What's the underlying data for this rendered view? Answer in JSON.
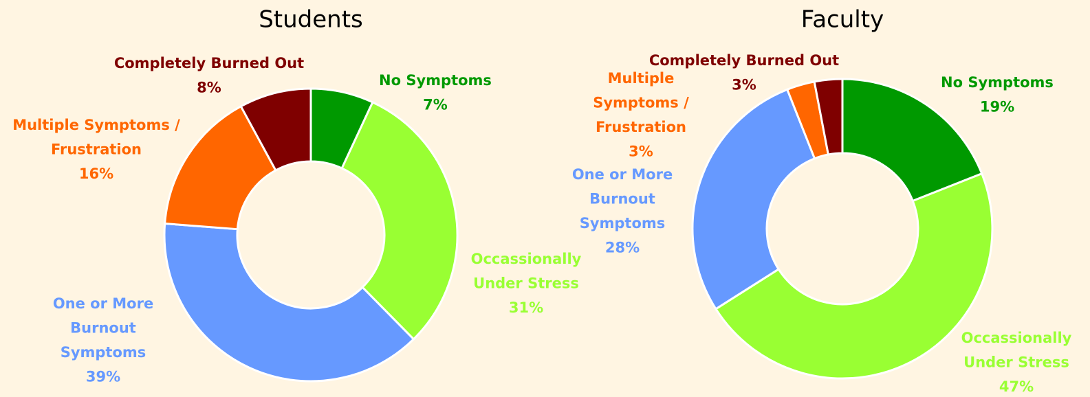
{
  "chart_data": [
    {
      "type": "pie",
      "title": "Students",
      "donut": true,
      "categories": [
        [
          "No Symptoms"
        ],
        [
          "Occassionally",
          "Under Stress"
        ],
        [
          "One or More",
          "Burnout",
          "Symptoms"
        ],
        [
          "Multiple Symptoms /",
          "Frustration"
        ],
        [
          "Completely Burned Out"
        ]
      ],
      "values": [
        7,
        31,
        39,
        16,
        8
      ],
      "value_labels": [
        "7%",
        "31%",
        "39%",
        "16%",
        "8%"
      ],
      "colors": [
        "#009900",
        "#99ff33",
        "#6699ff",
        "#ff6600",
        "#7f0000"
      ]
    },
    {
      "type": "pie",
      "title": "Faculty",
      "donut": true,
      "categories": [
        [
          "No Symptoms"
        ],
        [
          "Occassionally",
          "Under Stress"
        ],
        [
          "One or More",
          "Burnout",
          "Symptoms"
        ],
        [
          "Multiple",
          "Symptoms /",
          "Frustration"
        ],
        [
          "Completely Burned Out"
        ]
      ],
      "values": [
        19,
        47,
        28,
        3,
        3
      ],
      "value_labels": [
        "19%",
        "47%",
        "28%",
        "3%",
        "3%"
      ],
      "colors": [
        "#009900",
        "#99ff33",
        "#6699ff",
        "#ff6600",
        "#7f0000"
      ]
    }
  ]
}
